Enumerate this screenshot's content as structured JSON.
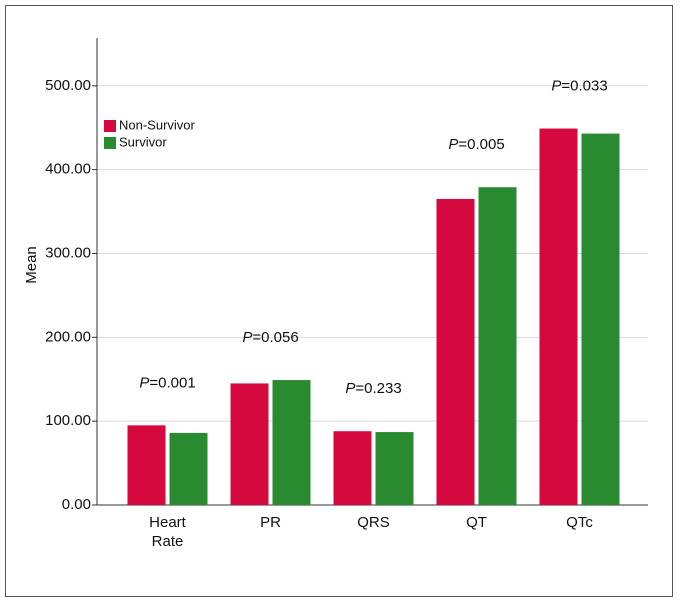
{
  "chart_data": {
    "type": "bar",
    "y_label": "Mean",
    "categories": [
      [
        "Heart",
        "Rate"
      ],
      [
        "PR"
      ],
      [
        "QRS"
      ],
      [
        "QT"
      ],
      [
        "QTc"
      ]
    ],
    "series": [
      {
        "name": "Non-Survivor",
        "color": "#d5093d",
        "values": [
          95,
          145,
          88,
          365,
          449
        ]
      },
      {
        "name": "Survivor",
        "color": "#2a8a30",
        "values": [
          86,
          149,
          87,
          379,
          443
        ]
      }
    ],
    "annotations": [
      {
        "italic": "P",
        "text": "=0.001"
      },
      {
        "italic": "P",
        "text": "=0.056"
      },
      {
        "italic": "P",
        "text": "=0.233"
      },
      {
        "italic": "P",
        "text": "=0.005"
      },
      {
        "italic": "P",
        "text": "=0.033"
      }
    ],
    "ylim": [
      0,
      557
    ],
    "yticks": [
      {
        "value": 0,
        "label": "0.00"
      },
      {
        "value": 100,
        "label": "100.00"
      },
      {
        "value": 200,
        "label": "200.00"
      },
      {
        "value": 300,
        "label": "300.00"
      },
      {
        "value": 400,
        "label": "400.00"
      },
      {
        "value": 500,
        "label": "500.00"
      }
    ],
    "grid": true,
    "legend": "upper-left"
  }
}
